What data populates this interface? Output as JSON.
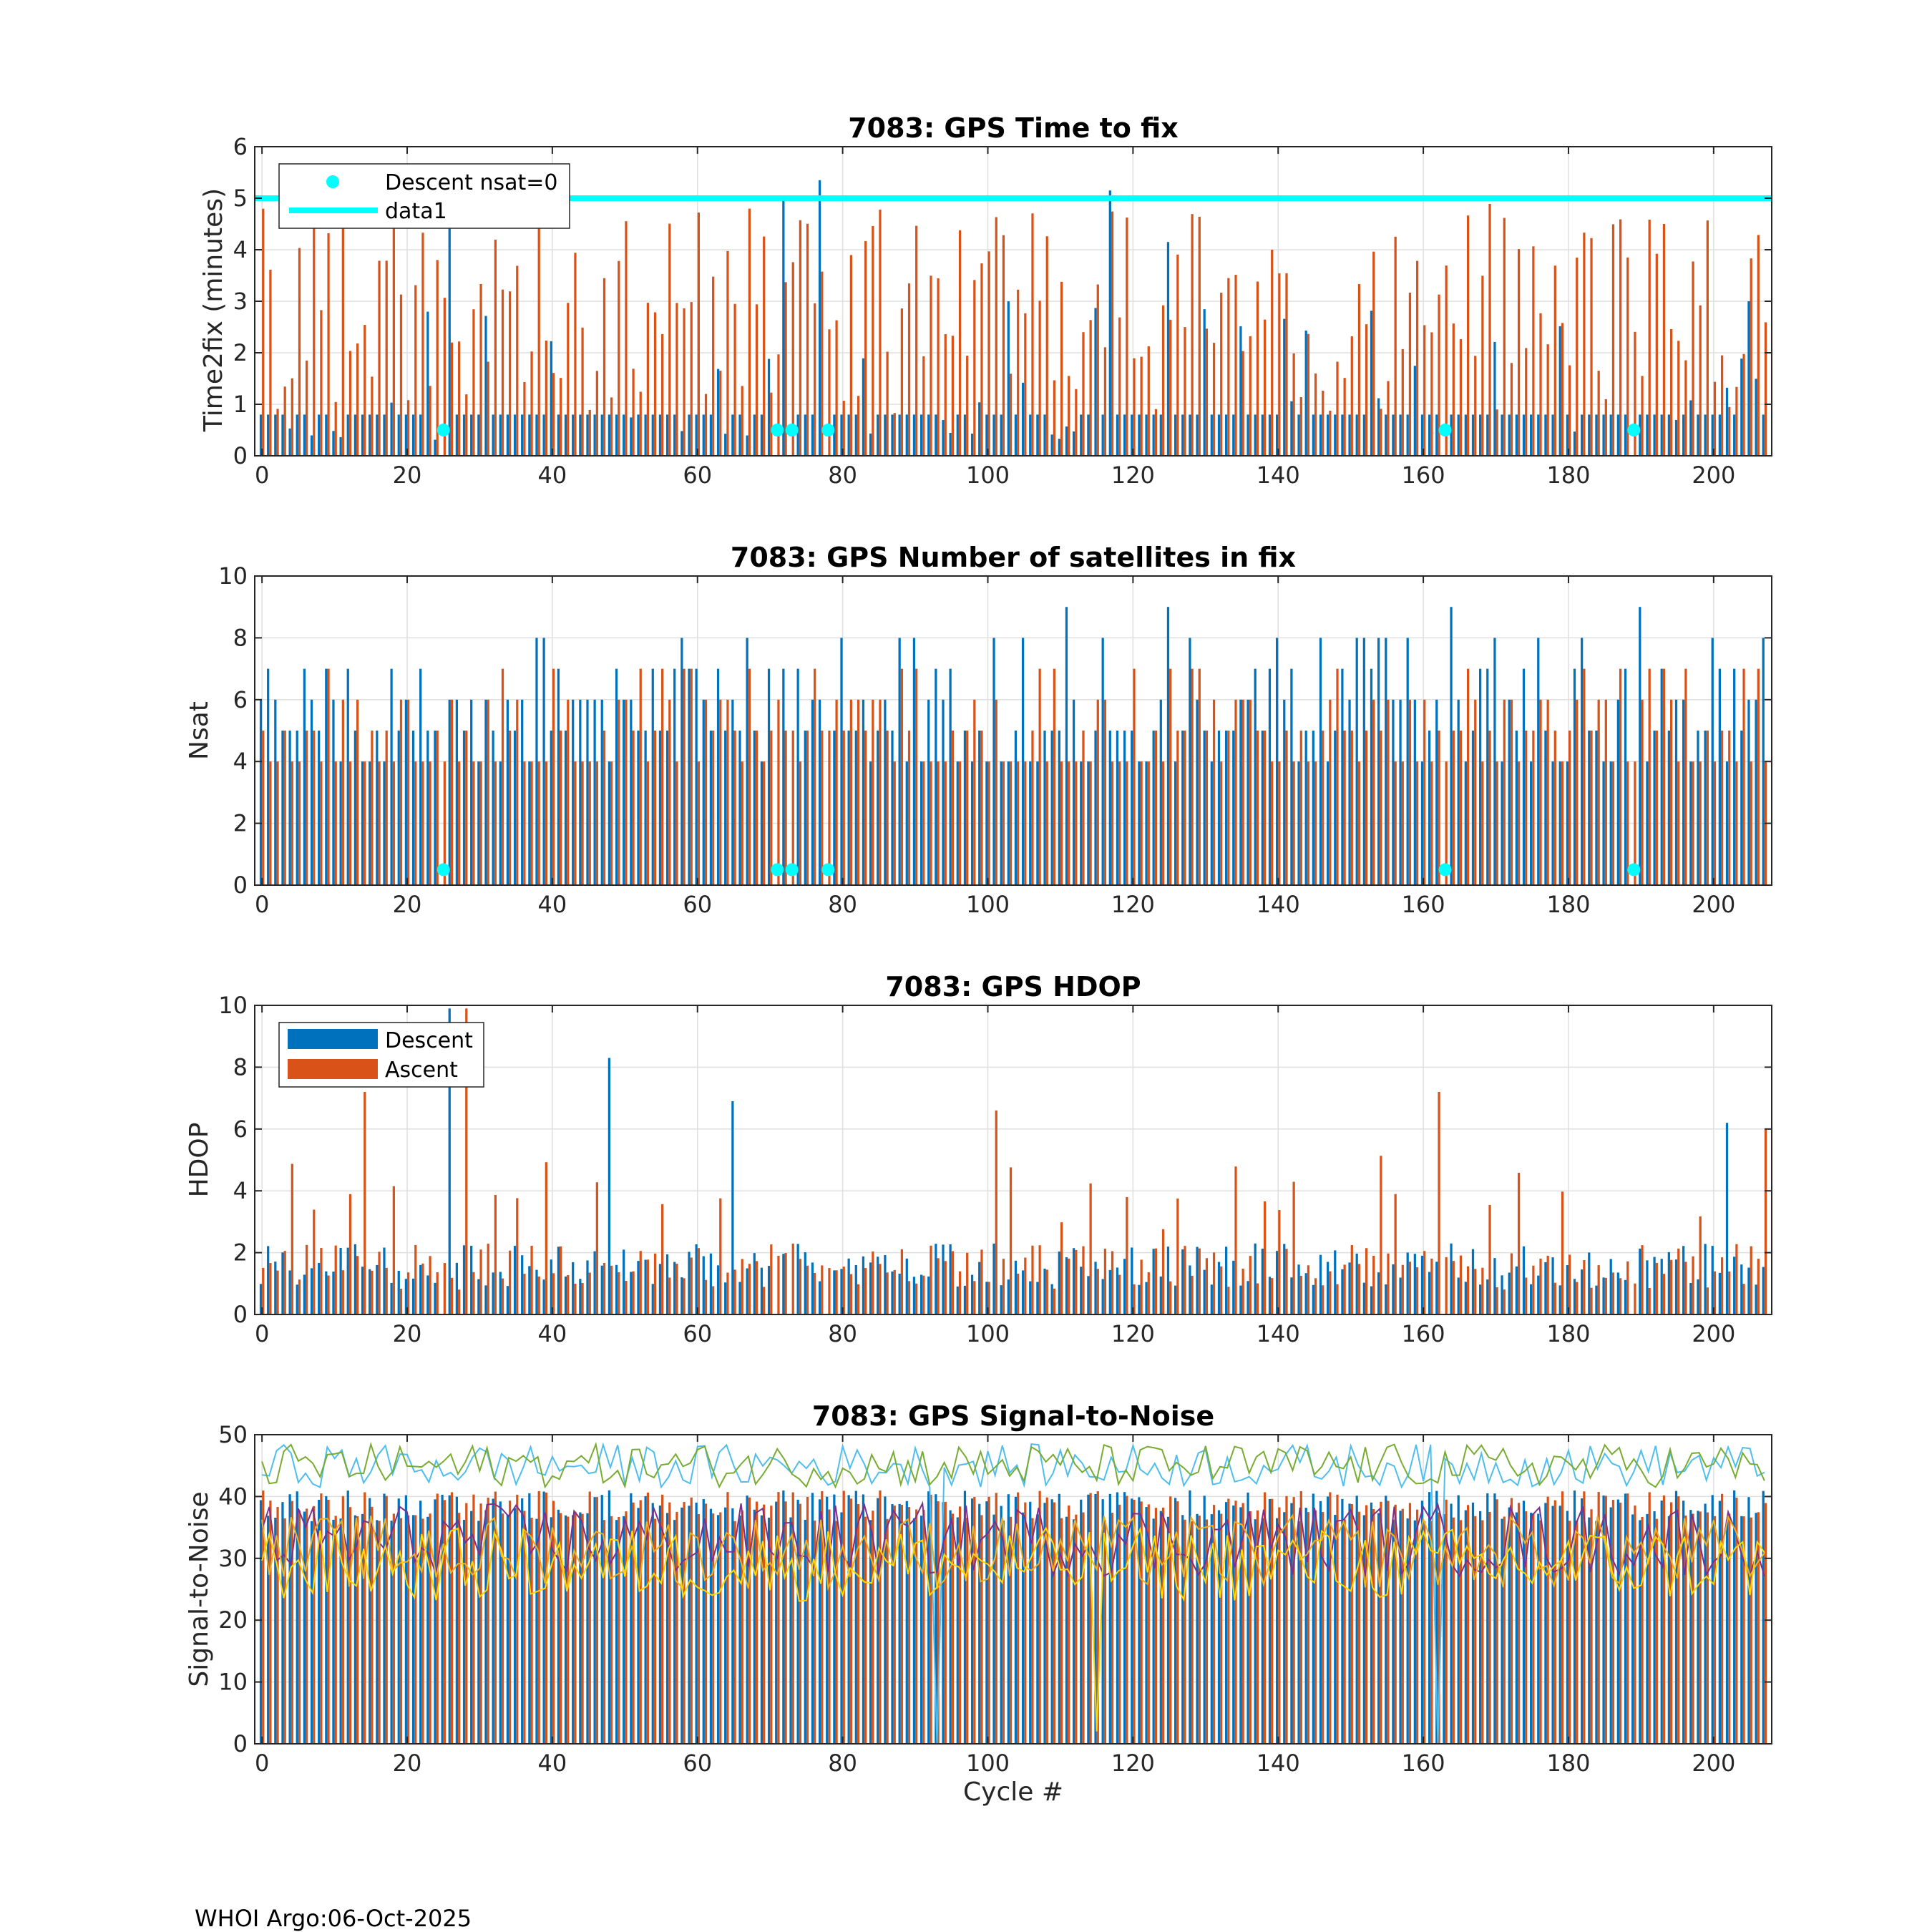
{
  "footer": "WHOI Argo:06-Oct-2025",
  "colors": {
    "descent": "#0072BD",
    "ascent": "#D95319",
    "cyan": "#00FFFF",
    "snr_lines": [
      "#4DBEEE",
      "#77AC30",
      "#7E2F8E",
      "#EDB120",
      "#FFD700"
    ]
  },
  "chart_data": [
    {
      "type": "bar",
      "title": "7083: GPS Time to fix",
      "xlabel": "",
      "ylabel": "Time2fix (minutes)",
      "xlim": [
        -1,
        208
      ],
      "ylim": [
        0,
        6
      ],
      "xticks": [
        0,
        20,
        40,
        60,
        80,
        100,
        120,
        140,
        160,
        180,
        200
      ],
      "yticks": [
        0,
        1,
        2,
        3,
        4,
        5,
        6
      ],
      "grid": true,
      "legend": {
        "position": "top-left",
        "entries": [
          "Descent nsat=0",
          "data1"
        ]
      },
      "reference_line": {
        "name": "data1",
        "y": 5
      },
      "markers": {
        "name": "Descent nsat=0",
        "x": [
          25,
          71,
          73,
          78,
          163,
          189
        ],
        "y": 0.5
      },
      "series_note": "Ascent (orange) ~0.8-5 min per cycle; descent (blue) mostly ~0.8 min with occasional spikes",
      "highlight_bars": [
        {
          "series": "Descent",
          "x": 26,
          "value": 5.0
        },
        {
          "series": "Descent",
          "x": 72,
          "value": 5.0
        },
        {
          "series": "Descent",
          "x": 77,
          "value": 5.35
        },
        {
          "series": "Descent",
          "x": 117,
          "value": 5.15
        },
        {
          "series": "Descent",
          "x": 125,
          "value": 4.15
        },
        {
          "series": "Descent",
          "x": 205,
          "value": 3.0
        }
      ]
    },
    {
      "type": "bar",
      "title": "7083: GPS Number of satellites in fix",
      "xlabel": "",
      "ylabel": "Nsat",
      "xlim": [
        -1,
        208
      ],
      "ylim": [
        0,
        10
      ],
      "xticks": [
        0,
        20,
        40,
        60,
        80,
        100,
        120,
        140,
        160,
        180,
        200
      ],
      "yticks": [
        0,
        2,
        4,
        6,
        8,
        10
      ],
      "grid": true,
      "markers": {
        "name": "Descent nsat=0",
        "x": [
          25,
          71,
          73,
          78,
          163,
          189
        ],
        "y": 0.5
      },
      "series_note": "Nsat mostly 4-6 per cycle, peaks up to 9 near cycles 111, 125, 164, 190"
    },
    {
      "type": "bar",
      "title": "7083: GPS HDOP",
      "xlabel": "",
      "ylabel": "HDOP",
      "xlim": [
        -1,
        208
      ],
      "ylim": [
        0,
        10
      ],
      "xticks": [
        0,
        20,
        40,
        60,
        80,
        100,
        120,
        140,
        160,
        180,
        200
      ],
      "yticks": [
        0,
        2,
        4,
        6,
        8,
        10
      ],
      "grid": true,
      "legend": {
        "position": "top-left",
        "entries": [
          "Descent",
          "Ascent"
        ]
      },
      "highlight_bars": [
        {
          "series": "Ascent",
          "x": 14,
          "value": 7.2
        },
        {
          "series": "Descent",
          "x": 26,
          "value": 9.9
        },
        {
          "series": "Ascent",
          "x": 28,
          "value": 9.9
        },
        {
          "series": "Descent",
          "x": 48,
          "value": 8.3
        },
        {
          "series": "Descent",
          "x": 65,
          "value": 6.9
        },
        {
          "series": "Ascent",
          "x": 101,
          "value": 6.6
        },
        {
          "series": "Ascent",
          "x": 162,
          "value": 7.2
        },
        {
          "series": "Descent",
          "x": 202,
          "value": 6.2
        },
        {
          "series": "Ascent",
          "x": 207,
          "value": 6.0
        }
      ]
    },
    {
      "type": "bar+line",
      "title": "7083: GPS Signal-to-Noise",
      "xlabel": "Cycle #",
      "ylabel": "Signal-to-Noise",
      "xlim": [
        -1,
        208
      ],
      "ylim": [
        0,
        50
      ],
      "xticks": [
        0,
        20,
        40,
        60,
        80,
        100,
        120,
        140,
        160,
        180,
        200
      ],
      "yticks": [
        0,
        10,
        20,
        30,
        40,
        50
      ],
      "grid": true,
      "series_note": "Bars ~36-44 per cycle; five satellite SNR lines between ~25 and ~50"
    }
  ]
}
